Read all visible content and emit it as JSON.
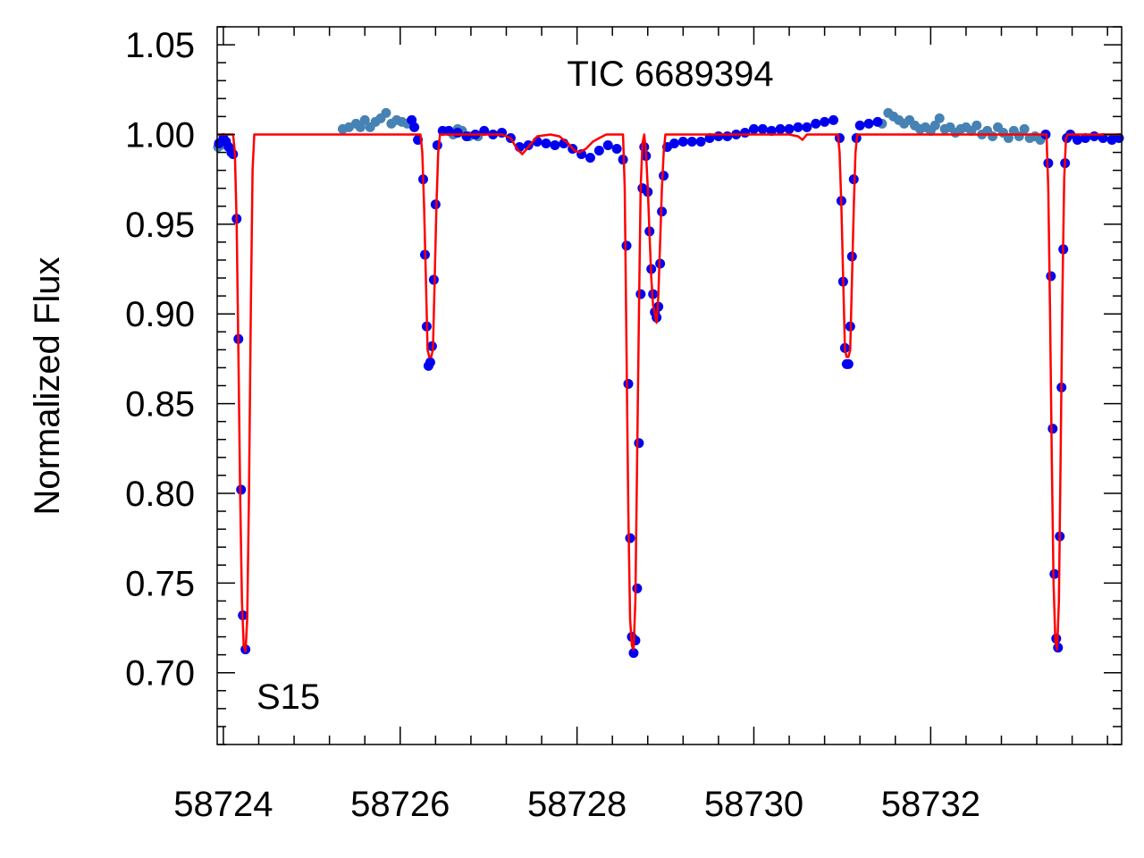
{
  "chart_data": {
    "type": "scatter",
    "title": "TIC 6689394",
    "annotation": "S15",
    "xlabel": "",
    "ylabel": "Normalized Flux",
    "xlim": [
      58723.93,
      58734.16
    ],
    "ylim": [
      0.66,
      1.06
    ],
    "xticks": [
      "58724",
      "58726",
      "58728",
      "58730",
      "58732"
    ],
    "xtick_values": [
      58724,
      58726,
      58728,
      58730,
      58732
    ],
    "yticks": [
      "0.70",
      "0.75",
      "0.80",
      "0.85",
      "0.90",
      "0.95",
      "1.00",
      "1.05"
    ],
    "ytick_values": [
      0.7,
      0.75,
      0.8,
      0.85,
      0.9,
      0.95,
      1.0,
      1.05
    ],
    "grid": false,
    "colors": {
      "observed": "#0000ee",
      "out_of_window": "#4682b4",
      "model": "#ff0000",
      "axes": "#000000"
    },
    "series": [
      {
        "role": "observed",
        "points": [
          [
            58723.95,
            0.995
          ],
          [
            58724.0,
            0.998
          ],
          [
            58724.03,
            0.996
          ],
          [
            58724.06,
            0.993
          ],
          [
            58724.09,
            0.99
          ],
          [
            58724.11,
            0.989
          ],
          [
            58724.15,
            0.953
          ],
          [
            58724.17,
            0.886
          ],
          [
            58724.2,
            0.802
          ],
          [
            58724.22,
            0.732
          ],
          [
            58724.25,
            0.713
          ],
          [
            58726.13,
            1.008
          ],
          [
            58726.16,
            1.004
          ],
          [
            58726.2,
            0.997
          ],
          [
            58726.26,
            0.975
          ],
          [
            58726.28,
            0.933
          ],
          [
            58726.3,
            0.893
          ],
          [
            58726.32,
            0.871
          ],
          [
            58726.34,
            0.873
          ],
          [
            58726.36,
            0.882
          ],
          [
            58726.38,
            0.919
          ],
          [
            58726.4,
            0.961
          ],
          [
            58726.42,
            0.994
          ],
          [
            58726.48,
            1.002
          ],
          [
            58726.55,
            1.002
          ],
          [
            58726.65,
            1.001
          ],
          [
            58726.75,
            0.999
          ],
          [
            58726.85,
            1.0
          ],
          [
            58726.95,
            1.002
          ],
          [
            58727.05,
            1.0
          ],
          [
            58727.15,
            1.001
          ],
          [
            58727.25,
            0.998
          ],
          [
            58727.35,
            0.993
          ],
          [
            58727.45,
            0.994
          ],
          [
            58727.55,
            0.996
          ],
          [
            58727.65,
            0.995
          ],
          [
            58727.75,
            0.994
          ],
          [
            58727.85,
            0.995
          ],
          [
            58727.95,
            0.992
          ],
          [
            58728.05,
            0.989
          ],
          [
            58728.15,
            0.987
          ],
          [
            58728.25,
            0.991
          ],
          [
            58728.35,
            0.994
          ],
          [
            58728.45,
            0.992
          ],
          [
            58728.52,
            0.986
          ],
          [
            58728.56,
            0.938
          ],
          [
            58728.58,
            0.861
          ],
          [
            58728.6,
            0.775
          ],
          [
            58728.62,
            0.72
          ],
          [
            58728.64,
            0.711
          ],
          [
            58728.66,
            0.718
          ],
          [
            58728.68,
            0.747
          ],
          [
            58728.7,
            0.828
          ],
          [
            58728.72,
            0.911
          ],
          [
            58728.74,
            0.97
          ],
          [
            58728.76,
            0.993
          ],
          [
            58728.78,
            0.988
          ],
          [
            58728.8,
            0.968
          ],
          [
            58728.82,
            0.946
          ],
          [
            58728.84,
            0.925
          ],
          [
            58728.86,
            0.911
          ],
          [
            58728.88,
            0.901
          ],
          [
            58728.9,
            0.898
          ],
          [
            58728.92,
            0.904
          ],
          [
            58728.94,
            0.928
          ],
          [
            58728.96,
            0.957
          ],
          [
            58728.98,
            0.977
          ],
          [
            58729.02,
            0.993
          ],
          [
            58729.1,
            0.995
          ],
          [
            58729.2,
            0.996
          ],
          [
            58729.3,
            0.996
          ],
          [
            58729.4,
            0.996
          ],
          [
            58729.5,
            0.998
          ],
          [
            58729.6,
            0.999
          ],
          [
            58729.7,
            0.999
          ],
          [
            58729.8,
            1.0
          ],
          [
            58729.9,
            1.001
          ],
          [
            58730.0,
            1.003
          ],
          [
            58730.1,
            1.003
          ],
          [
            58730.2,
            1.002
          ],
          [
            58730.3,
            1.003
          ],
          [
            58730.4,
            1.003
          ],
          [
            58730.5,
            1.004
          ],
          [
            58730.6,
            1.004
          ],
          [
            58730.7,
            1.006
          ],
          [
            58730.8,
            1.007
          ],
          [
            58730.9,
            1.008
          ],
          [
            58730.97,
            0.998
          ],
          [
            58730.99,
            0.963
          ],
          [
            58731.01,
            0.918
          ],
          [
            58731.03,
            0.881
          ],
          [
            58731.05,
            0.872
          ],
          [
            58731.07,
            0.872
          ],
          [
            58731.09,
            0.893
          ],
          [
            58731.11,
            0.932
          ],
          [
            58731.13,
            0.975
          ],
          [
            58731.16,
            0.998
          ],
          [
            58731.2,
            1.005
          ],
          [
            58731.3,
            1.006
          ],
          [
            58731.4,
            1.007
          ],
          [
            58733.3,
            1.0
          ],
          [
            58733.33,
            0.984
          ],
          [
            58733.36,
            0.921
          ],
          [
            58733.38,
            0.836
          ],
          [
            58733.4,
            0.755
          ],
          [
            58733.42,
            0.719
          ],
          [
            58733.44,
            0.714
          ],
          [
            58733.46,
            0.776
          ],
          [
            58733.48,
            0.859
          ],
          [
            58733.5,
            0.936
          ],
          [
            58733.52,
            0.984
          ],
          [
            58733.54,
            0.998
          ],
          [
            58733.58,
            1.0
          ],
          [
            58733.66,
            0.997
          ],
          [
            58733.75,
            0.998
          ],
          [
            58733.85,
            0.999
          ],
          [
            58733.95,
            0.998
          ],
          [
            58734.05,
            0.997
          ],
          [
            58734.13,
            0.998
          ]
        ]
      },
      {
        "role": "out_of_window",
        "points": [
          [
            58723.94,
            0.993
          ],
          [
            58723.97,
            0.994
          ],
          [
            58725.35,
            1.003
          ],
          [
            58725.42,
            1.004
          ],
          [
            58725.5,
            1.006
          ],
          [
            58725.55,
            1.004
          ],
          [
            58725.6,
            1.008
          ],
          [
            58725.66,
            1.004
          ],
          [
            58725.72,
            1.007
          ],
          [
            58725.78,
            1.009
          ],
          [
            58725.84,
            1.012
          ],
          [
            58725.9,
            1.006
          ],
          [
            58725.96,
            1.008
          ],
          [
            58726.02,
            1.007
          ],
          [
            58726.08,
            1.006
          ],
          [
            58726.6,
            1.0
          ],
          [
            58726.65,
            1.003
          ],
          [
            58726.7,
            1.002
          ],
          [
            58726.78,
            0.999
          ],
          [
            58726.88,
            0.999
          ],
          [
            58731.45,
            1.006
          ],
          [
            58731.52,
            1.012
          ],
          [
            58731.58,
            1.01
          ],
          [
            58731.64,
            1.008
          ],
          [
            58731.7,
            1.006
          ],
          [
            58731.76,
            1.008
          ],
          [
            58731.82,
            1.005
          ],
          [
            58731.88,
            1.003
          ],
          [
            58731.94,
            1.004
          ],
          [
            58732.0,
            1.002
          ],
          [
            58732.05,
            1.005
          ],
          [
            58732.1,
            1.009
          ],
          [
            58732.16,
            1.003
          ],
          [
            58732.22,
            1.004
          ],
          [
            58732.28,
            1.001
          ],
          [
            58732.34,
            1.003
          ],
          [
            58732.4,
            1.004
          ],
          [
            58732.46,
            1.002
          ],
          [
            58732.52,
            1.005
          ],
          [
            58732.58,
            1.0
          ],
          [
            58732.64,
            1.002
          ],
          [
            58732.7,
            0.999
          ],
          [
            58732.76,
            1.004
          ],
          [
            58732.82,
            1.001
          ],
          [
            58732.88,
            0.998
          ],
          [
            58732.94,
            1.002
          ],
          [
            58733.0,
            0.999
          ],
          [
            58733.06,
            1.003
          ],
          [
            58733.12,
            0.998
          ],
          [
            58733.18,
            0.999
          ],
          [
            58733.24,
            0.997
          ]
        ]
      },
      {
        "role": "model",
        "points": [
          [
            58723.93,
            1.0
          ],
          [
            58724.11,
            1.0
          ],
          [
            58724.13,
            0.99
          ],
          [
            58724.15,
            0.95
          ],
          [
            58724.17,
            0.88
          ],
          [
            58724.19,
            0.8
          ],
          [
            58724.21,
            0.74
          ],
          [
            58724.23,
            0.715
          ],
          [
            58724.25,
            0.712
          ],
          [
            58724.27,
            0.73
          ],
          [
            58724.29,
            0.8
          ],
          [
            58724.31,
            0.9
          ],
          [
            58724.33,
            0.98
          ],
          [
            58724.35,
            1.0
          ],
          [
            58726.12,
            1.0
          ],
          [
            58726.23,
            1.0
          ],
          [
            58726.25,
            0.99
          ],
          [
            58726.27,
            0.96
          ],
          [
            58726.29,
            0.92
          ],
          [
            58726.31,
            0.88
          ],
          [
            58726.33,
            0.876
          ],
          [
            58726.35,
            0.876
          ],
          [
            58726.37,
            0.88
          ],
          [
            58726.39,
            0.92
          ],
          [
            58726.41,
            0.96
          ],
          [
            58726.43,
            0.99
          ],
          [
            58726.45,
            1.0
          ],
          [
            58727.05,
            1.0
          ],
          [
            58727.15,
            1.0
          ],
          [
            58727.25,
            0.998
          ],
          [
            58727.32,
            0.992
          ],
          [
            58727.38,
            0.989
          ],
          [
            58727.45,
            0.993
          ],
          [
            58727.55,
            0.999
          ],
          [
            58727.7,
            1.0
          ],
          [
            58727.8,
            0.999
          ],
          [
            58727.9,
            0.995
          ],
          [
            58727.97,
            0.991
          ],
          [
            58728.03,
            0.99
          ],
          [
            58728.1,
            0.992
          ],
          [
            58728.18,
            0.996
          ],
          [
            58728.25,
            0.998
          ],
          [
            58728.33,
            1.0
          ],
          [
            58728.52,
            1.0
          ],
          [
            58728.54,
            0.97
          ],
          [
            58728.56,
            0.88
          ],
          [
            58728.58,
            0.79
          ],
          [
            58728.6,
            0.73
          ],
          [
            58728.62,
            0.715
          ],
          [
            58728.64,
            0.713
          ],
          [
            58728.66,
            0.74
          ],
          [
            58728.68,
            0.82
          ],
          [
            58728.7,
            0.9
          ],
          [
            58728.72,
            0.97
          ],
          [
            58728.74,
            0.995
          ],
          [
            58728.76,
            1.0
          ],
          [
            58728.78,
            0.99
          ],
          [
            58728.8,
            0.97
          ],
          [
            58728.82,
            0.945
          ],
          [
            58728.84,
            0.92
          ],
          [
            58728.86,
            0.905
          ],
          [
            58728.88,
            0.9
          ],
          [
            58728.9,
            0.895
          ],
          [
            58728.92,
            0.91
          ],
          [
            58728.94,
            0.94
          ],
          [
            58728.96,
            0.97
          ],
          [
            58728.98,
            0.99
          ],
          [
            58729.0,
            1.0
          ],
          [
            58729.4,
            1.0
          ],
          [
            58729.8,
            1.0
          ],
          [
            58730.2,
            1.0
          ],
          [
            58730.4,
            1.0
          ],
          [
            58730.5,
            0.999
          ],
          [
            58730.55,
            0.997
          ],
          [
            58730.6,
            1.0
          ],
          [
            58730.95,
            1.0
          ],
          [
            58730.97,
            0.99
          ],
          [
            58730.99,
            0.96
          ],
          [
            58731.01,
            0.92
          ],
          [
            58731.03,
            0.88
          ],
          [
            58731.05,
            0.876
          ],
          [
            58731.07,
            0.876
          ],
          [
            58731.09,
            0.88
          ],
          [
            58731.11,
            0.92
          ],
          [
            58731.13,
            0.96
          ],
          [
            58731.15,
            0.99
          ],
          [
            58731.17,
            1.0
          ],
          [
            58732.0,
            1.0
          ],
          [
            58733.0,
            1.0
          ],
          [
            58733.31,
            1.0
          ],
          [
            58733.33,
            0.97
          ],
          [
            58733.35,
            0.9
          ],
          [
            58733.37,
            0.82
          ],
          [
            58733.39,
            0.75
          ],
          [
            58733.41,
            0.718
          ],
          [
            58733.43,
            0.713
          ],
          [
            58733.45,
            0.74
          ],
          [
            58733.47,
            0.82
          ],
          [
            58733.49,
            0.91
          ],
          [
            58733.51,
            0.975
          ],
          [
            58733.53,
            0.998
          ],
          [
            58733.55,
            1.0
          ],
          [
            58734.16,
            1.0
          ]
        ]
      }
    ]
  }
}
